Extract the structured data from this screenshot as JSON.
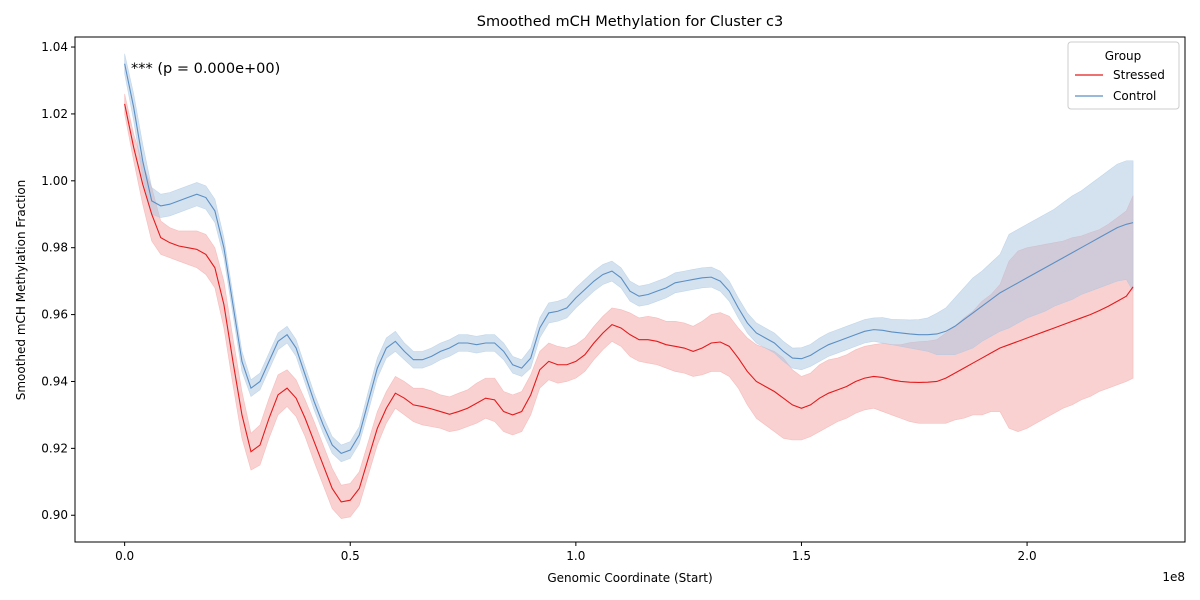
{
  "chart_data": {
    "type": "line",
    "title": "Smoothed mCH Methylation for Cluster c3",
    "xlabel": "Genomic Coordinate (Start)",
    "ylabel": "Smoothed mCH Methylation Fraction",
    "x_offset_label": "1e8",
    "annotation": "*** (p = 0.000e+00)",
    "xlim": [
      -0.11,
      2.35
    ],
    "ylim": [
      0.892,
      1.043
    ],
    "x_ticks": [
      0.0,
      0.5,
      1.0,
      1.5,
      2.0
    ],
    "x_tick_labels": [
      "0.0",
      "0.5",
      "1.0",
      "1.5",
      "2.0"
    ],
    "y_ticks": [
      0.9,
      0.92,
      0.94,
      0.96,
      0.98,
      1.0,
      1.02,
      1.04
    ],
    "y_tick_labels": [
      "0.90",
      "0.92",
      "0.94",
      "0.96",
      "0.98",
      "1.00",
      "1.02",
      "1.04"
    ],
    "grid": false,
    "legend": {
      "title": "Group",
      "position": "top-right",
      "entries": [
        "Stressed",
        "Control"
      ]
    },
    "x": [
      0.0,
      0.02,
      0.04,
      0.06,
      0.08,
      0.1,
      0.12,
      0.14,
      0.16,
      0.18,
      0.2,
      0.22,
      0.24,
      0.26,
      0.28,
      0.3,
      0.32,
      0.34,
      0.36,
      0.38,
      0.4,
      0.42,
      0.44,
      0.46,
      0.48,
      0.5,
      0.52,
      0.54,
      0.56,
      0.58,
      0.6,
      0.62,
      0.64,
      0.66,
      0.68,
      0.7,
      0.72,
      0.74,
      0.76,
      0.78,
      0.8,
      0.82,
      0.84,
      0.86,
      0.88,
      0.9,
      0.92,
      0.94,
      0.96,
      0.98,
      1.0,
      1.02,
      1.04,
      1.06,
      1.08,
      1.1,
      1.12,
      1.14,
      1.16,
      1.18,
      1.2,
      1.22,
      1.24,
      1.26,
      1.28,
      1.3,
      1.32,
      1.34,
      1.36,
      1.38,
      1.4,
      1.42,
      1.44,
      1.46,
      1.48,
      1.5,
      1.52,
      1.54,
      1.56,
      1.58,
      1.6,
      1.62,
      1.64,
      1.66,
      1.68,
      1.7,
      1.72,
      1.74,
      1.76,
      1.78,
      1.8,
      1.82,
      1.84,
      1.86,
      1.88,
      1.9,
      1.92,
      1.94,
      1.96,
      1.98,
      2.0,
      2.02,
      2.04,
      2.06,
      2.08,
      2.1,
      2.12,
      2.14,
      2.16,
      2.18,
      2.2,
      2.22,
      2.235
    ],
    "series": [
      {
        "name": "Stressed",
        "color": "#e41a1c",
        "band_color": "#f4a3a4",
        "values": [
          1.023,
          1.01,
          0.999,
          0.99,
          0.983,
          0.9815,
          0.9805,
          0.98,
          0.9795,
          0.978,
          0.974,
          0.963,
          0.946,
          0.93,
          0.919,
          0.921,
          0.929,
          0.936,
          0.938,
          0.935,
          0.929,
          0.922,
          0.915,
          0.908,
          0.904,
          0.9045,
          0.908,
          0.917,
          0.926,
          0.932,
          0.9365,
          0.935,
          0.933,
          0.9325,
          0.9318,
          0.931,
          0.9302,
          0.931,
          0.932,
          0.9335,
          0.935,
          0.9345,
          0.931,
          0.93,
          0.931,
          0.936,
          0.9435,
          0.946,
          0.945,
          0.945,
          0.946,
          0.948,
          0.9515,
          0.9545,
          0.957,
          0.956,
          0.954,
          0.9525,
          0.9525,
          0.952,
          0.951,
          0.9505,
          0.95,
          0.949,
          0.95,
          0.9515,
          0.9518,
          0.9505,
          0.947,
          0.943,
          0.94,
          0.9385,
          0.937,
          0.935,
          0.933,
          0.932,
          0.933,
          0.935,
          0.9365,
          0.9375,
          0.9385,
          0.94,
          0.941,
          0.9415,
          0.9412,
          0.9405,
          0.94,
          0.9398,
          0.9397,
          0.9398,
          0.94,
          0.941,
          0.9425,
          0.944,
          0.9455,
          0.947,
          0.9485,
          0.95,
          0.951,
          0.952,
          0.953,
          0.954,
          0.955,
          0.956,
          0.957,
          0.958,
          0.959,
          0.96,
          0.9612,
          0.9625,
          0.964,
          0.9655,
          0.9683
        ],
        "lower": [
          1.02,
          1.006,
          0.993,
          0.982,
          0.978,
          0.977,
          0.976,
          0.975,
          0.974,
          0.972,
          0.968,
          0.956,
          0.939,
          0.923,
          0.9135,
          0.915,
          0.923,
          0.93,
          0.9325,
          0.9295,
          0.9235,
          0.916,
          0.909,
          0.902,
          0.899,
          0.8995,
          0.903,
          0.912,
          0.921,
          0.9275,
          0.932,
          0.93,
          0.928,
          0.927,
          0.9265,
          0.926,
          0.925,
          0.9255,
          0.9265,
          0.9275,
          0.929,
          0.928,
          0.925,
          0.924,
          0.925,
          0.93,
          0.938,
          0.9405,
          0.9395,
          0.94,
          0.941,
          0.943,
          0.9465,
          0.9495,
          0.952,
          0.9505,
          0.9475,
          0.946,
          0.9455,
          0.945,
          0.944,
          0.943,
          0.9425,
          0.9415,
          0.942,
          0.943,
          0.943,
          0.9415,
          0.938,
          0.933,
          0.929,
          0.927,
          0.925,
          0.923,
          0.9225,
          0.9225,
          0.9235,
          0.925,
          0.9265,
          0.928,
          0.929,
          0.9305,
          0.9315,
          0.932,
          0.931,
          0.93,
          0.929,
          0.928,
          0.9275,
          0.9275,
          0.9275,
          0.9275,
          0.9285,
          0.929,
          0.93,
          0.93,
          0.931,
          0.931,
          0.926,
          0.925,
          0.926,
          0.9275,
          0.929,
          0.9305,
          0.932,
          0.933,
          0.9345,
          0.9355,
          0.937,
          0.938,
          0.939,
          0.94,
          0.941
        ],
        "upper": [
          1.026,
          1.014,
          1.005,
          0.998,
          0.988,
          0.986,
          0.985,
          0.985,
          0.985,
          0.984,
          0.98,
          0.97,
          0.953,
          0.937,
          0.9245,
          0.927,
          0.935,
          0.942,
          0.9435,
          0.9405,
          0.9345,
          0.928,
          0.921,
          0.914,
          0.909,
          0.9095,
          0.913,
          0.922,
          0.931,
          0.937,
          0.9415,
          0.94,
          0.938,
          0.938,
          0.9372,
          0.936,
          0.9354,
          0.9365,
          0.9375,
          0.9395,
          0.941,
          0.941,
          0.937,
          0.936,
          0.937,
          0.942,
          0.949,
          0.9515,
          0.9505,
          0.95,
          0.951,
          0.953,
          0.9565,
          0.9595,
          0.962,
          0.9615,
          0.9605,
          0.959,
          0.9595,
          0.959,
          0.958,
          0.958,
          0.9575,
          0.9565,
          0.958,
          0.96,
          0.9606,
          0.9595,
          0.956,
          0.953,
          0.951,
          0.95,
          0.949,
          0.947,
          0.9435,
          0.9415,
          0.9425,
          0.945,
          0.9465,
          0.947,
          0.948,
          0.9495,
          0.9505,
          0.951,
          0.9514,
          0.951,
          0.951,
          0.9516,
          0.9519,
          0.9521,
          0.9525,
          0.9545,
          0.9565,
          0.959,
          0.961,
          0.964,
          0.966,
          0.969,
          0.976,
          0.979,
          0.98,
          0.9805,
          0.981,
          0.9815,
          0.982,
          0.983,
          0.9835,
          0.9845,
          0.9854,
          0.987,
          0.989,
          0.991,
          0.9956
        ]
      },
      {
        "name": "Control",
        "color": "#5b8fc4",
        "band_color": "#a9c6e2",
        "values": [
          1.035,
          1.022,
          1.006,
          0.994,
          0.9925,
          0.993,
          0.994,
          0.995,
          0.996,
          0.995,
          0.991,
          0.98,
          0.963,
          0.946,
          0.938,
          0.94,
          0.946,
          0.952,
          0.954,
          0.95,
          0.942,
          0.934,
          0.927,
          0.921,
          0.9185,
          0.9195,
          0.924,
          0.934,
          0.944,
          0.95,
          0.952,
          0.949,
          0.9465,
          0.9465,
          0.9475,
          0.949,
          0.95,
          0.9515,
          0.9515,
          0.951,
          0.9515,
          0.9515,
          0.949,
          0.945,
          0.944,
          0.947,
          0.956,
          0.9605,
          0.961,
          0.962,
          0.965,
          0.9675,
          0.97,
          0.972,
          0.973,
          0.971,
          0.967,
          0.9655,
          0.966,
          0.967,
          0.968,
          0.9695,
          0.97,
          0.9705,
          0.971,
          0.9712,
          0.97,
          0.967,
          0.962,
          0.9575,
          0.9545,
          0.953,
          0.9515,
          0.949,
          0.947,
          0.9468,
          0.9478,
          0.9495,
          0.951,
          0.952,
          0.953,
          0.954,
          0.955,
          0.9555,
          0.9553,
          0.9548,
          0.9545,
          0.9542,
          0.954,
          0.954,
          0.9542,
          0.955,
          0.9565,
          0.9585,
          0.9605,
          0.9625,
          0.9645,
          0.9665,
          0.968,
          0.9695,
          0.971,
          0.9725,
          0.974,
          0.9755,
          0.977,
          0.9785,
          0.98,
          0.9815,
          0.983,
          0.9845,
          0.986,
          0.987,
          0.9875
        ],
        "lower": [
          1.032,
          1.018,
          1.001,
          0.99,
          0.989,
          0.9895,
          0.9905,
          0.9915,
          0.9925,
          0.9915,
          0.9875,
          0.977,
          0.96,
          0.943,
          0.9355,
          0.9375,
          0.9435,
          0.9495,
          0.9515,
          0.9475,
          0.9395,
          0.9315,
          0.9245,
          0.9185,
          0.916,
          0.917,
          0.9215,
          0.931,
          0.941,
          0.947,
          0.949,
          0.9465,
          0.944,
          0.944,
          0.945,
          0.9465,
          0.9475,
          0.949,
          0.949,
          0.9485,
          0.949,
          0.949,
          0.9465,
          0.9425,
          0.9415,
          0.944,
          0.953,
          0.9575,
          0.958,
          0.959,
          0.962,
          0.9645,
          0.967,
          0.969,
          0.97,
          0.968,
          0.964,
          0.9625,
          0.963,
          0.964,
          0.965,
          0.9665,
          0.967,
          0.9675,
          0.968,
          0.9682,
          0.967,
          0.964,
          0.959,
          0.9545,
          0.9515,
          0.95,
          0.9485,
          0.946,
          0.944,
          0.9435,
          0.9445,
          0.946,
          0.9475,
          0.9485,
          0.9495,
          0.9505,
          0.9515,
          0.952,
          0.9515,
          0.951,
          0.9505,
          0.95,
          0.9495,
          0.949,
          0.948,
          0.948,
          0.948,
          0.949,
          0.95,
          0.952,
          0.9535,
          0.955,
          0.956,
          0.9575,
          0.959,
          0.96,
          0.961,
          0.9625,
          0.9635,
          0.9645,
          0.966,
          0.967,
          0.968,
          0.969,
          0.97,
          0.9705,
          0.967
        ],
        "upper": [
          1.038,
          1.026,
          1.011,
          0.998,
          0.996,
          0.9965,
          0.9975,
          0.9985,
          0.9995,
          0.9985,
          0.9945,
          0.983,
          0.966,
          0.949,
          0.9405,
          0.9425,
          0.9485,
          0.9545,
          0.9565,
          0.9525,
          0.9445,
          0.9365,
          0.9295,
          0.9235,
          0.921,
          0.922,
          0.9265,
          0.937,
          0.947,
          0.953,
          0.955,
          0.9515,
          0.949,
          0.949,
          0.95,
          0.9515,
          0.9525,
          0.954,
          0.954,
          0.9535,
          0.954,
          0.954,
          0.9515,
          0.9475,
          0.9465,
          0.95,
          0.959,
          0.9635,
          0.964,
          0.965,
          0.968,
          0.9705,
          0.973,
          0.975,
          0.976,
          0.974,
          0.97,
          0.9685,
          0.969,
          0.97,
          0.971,
          0.9725,
          0.973,
          0.9735,
          0.974,
          0.9742,
          0.973,
          0.97,
          0.965,
          0.9605,
          0.9575,
          0.956,
          0.9545,
          0.952,
          0.95,
          0.9501,
          0.9511,
          0.953,
          0.9545,
          0.9555,
          0.9565,
          0.9575,
          0.9585,
          0.959,
          0.9591,
          0.9586,
          0.9585,
          0.9584,
          0.9585,
          0.959,
          0.9604,
          0.962,
          0.965,
          0.968,
          0.971,
          0.973,
          0.9755,
          0.978,
          0.984,
          0.9855,
          0.987,
          0.9885,
          0.99,
          0.9915,
          0.9935,
          0.9955,
          0.997,
          0.999,
          1.001,
          1.003,
          1.005,
          1.006,
          1.006
        ]
      }
    ]
  }
}
